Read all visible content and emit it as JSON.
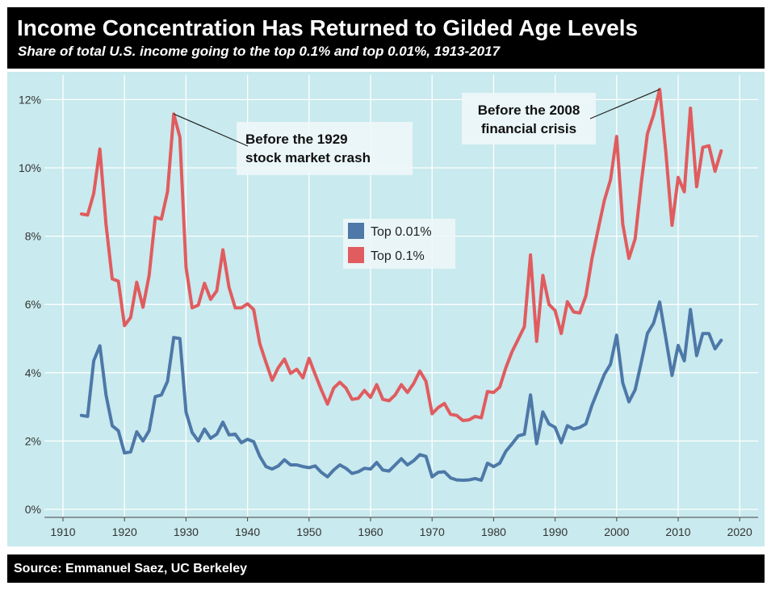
{
  "header": {
    "title": "Income Concentration Has Returned to Gilded Age Levels",
    "subtitle": "Share of total U.S. income going to the top 0.1% and top 0.01%, 1913-2017"
  },
  "footer": {
    "source": "Source: Emmanuel Saez, UC Berkeley"
  },
  "chart_data": {
    "type": "line",
    "title": "Income Concentration Has Returned to Gilded Age Levels",
    "subtitle": "Share of total U.S. income going to the top 0.1% and top 0.01%, 1913-2017",
    "xlabel": "",
    "ylabel": "",
    "xlim": [
      1907,
      2023
    ],
    "ylim": [
      0,
      12.8
    ],
    "x_ticks": [
      1910,
      1920,
      1930,
      1940,
      1950,
      1960,
      1970,
      1980,
      1990,
      2000,
      2010,
      2020
    ],
    "y_ticks": [
      0,
      2,
      4,
      6,
      8,
      10,
      12
    ],
    "y_tick_labels": [
      "0%",
      "2%",
      "4%",
      "6%",
      "8%",
      "10%",
      "12%"
    ],
    "grid": true,
    "legend_position": "center",
    "x": [
      1913,
      1914,
      1915,
      1916,
      1917,
      1918,
      1919,
      1920,
      1921,
      1922,
      1923,
      1924,
      1925,
      1926,
      1927,
      1928,
      1929,
      1930,
      1931,
      1932,
      1933,
      1934,
      1935,
      1936,
      1937,
      1938,
      1939,
      1940,
      1941,
      1942,
      1943,
      1944,
      1945,
      1946,
      1947,
      1948,
      1949,
      1950,
      1951,
      1952,
      1953,
      1954,
      1955,
      1956,
      1957,
      1958,
      1959,
      1960,
      1961,
      1962,
      1963,
      1964,
      1965,
      1966,
      1967,
      1968,
      1969,
      1970,
      1971,
      1972,
      1973,
      1974,
      1975,
      1976,
      1977,
      1978,
      1979,
      1980,
      1981,
      1982,
      1983,
      1984,
      1985,
      1986,
      1987,
      1988,
      1989,
      1990,
      1991,
      1992,
      1993,
      1994,
      1995,
      1996,
      1997,
      1998,
      1999,
      2000,
      2001,
      2002,
      2003,
      2004,
      2005,
      2006,
      2007,
      2008,
      2009,
      2010,
      2011,
      2012,
      2013,
      2014,
      2015,
      2016,
      2017
    ],
    "series": [
      {
        "name": "Top 0.01%",
        "color": "#4d78a8",
        "values": [
          2.75,
          2.72,
          4.35,
          4.79,
          3.35,
          2.45,
          2.3,
          1.65,
          1.68,
          2.27,
          2.0,
          2.3,
          3.3,
          3.35,
          3.75,
          5.03,
          5.0,
          2.85,
          2.25,
          2.0,
          2.35,
          2.08,
          2.2,
          2.55,
          2.18,
          2.2,
          1.95,
          2.05,
          1.98,
          1.55,
          1.25,
          1.18,
          1.27,
          1.45,
          1.3,
          1.3,
          1.25,
          1.22,
          1.27,
          1.08,
          0.95,
          1.15,
          1.3,
          1.2,
          1.05,
          1.1,
          1.2,
          1.18,
          1.37,
          1.15,
          1.12,
          1.3,
          1.48,
          1.3,
          1.42,
          1.6,
          1.55,
          0.95,
          1.08,
          1.1,
          0.92,
          0.86,
          0.85,
          0.86,
          0.9,
          0.85,
          1.35,
          1.25,
          1.35,
          1.7,
          1.92,
          2.15,
          2.2,
          3.35,
          1.92,
          2.85,
          2.5,
          2.4,
          1.95,
          2.45,
          2.35,
          2.4,
          2.5,
          3.05,
          3.5,
          3.95,
          4.25,
          5.1,
          3.7,
          3.15,
          3.5,
          4.3,
          5.15,
          5.45,
          6.07,
          5.0,
          3.92,
          4.8,
          4.35,
          5.85,
          4.5,
          5.15,
          5.15,
          4.7,
          4.95
        ]
      },
      {
        "name": "Top 0.1%",
        "color": "#e05c5f",
        "values": [
          8.65,
          8.62,
          9.25,
          10.55,
          8.35,
          6.75,
          6.68,
          5.38,
          5.62,
          6.65,
          5.92,
          6.85,
          8.55,
          8.5,
          9.3,
          11.58,
          10.9,
          7.1,
          5.9,
          5.98,
          6.62,
          6.15,
          6.4,
          7.6,
          6.5,
          5.9,
          5.9,
          6.02,
          5.85,
          4.85,
          4.3,
          3.78,
          4.15,
          4.4,
          3.98,
          4.1,
          3.85,
          4.42,
          3.95,
          3.5,
          3.08,
          3.55,
          3.72,
          3.55,
          3.22,
          3.25,
          3.48,
          3.28,
          3.65,
          3.22,
          3.18,
          3.35,
          3.65,
          3.42,
          3.68,
          4.05,
          3.75,
          2.8,
          2.98,
          3.1,
          2.78,
          2.75,
          2.6,
          2.62,
          2.72,
          2.68,
          3.45,
          3.42,
          3.58,
          4.15,
          4.62,
          4.98,
          5.35,
          7.45,
          4.92,
          6.85,
          6.0,
          5.82,
          5.15,
          6.08,
          5.78,
          5.75,
          6.25,
          7.35,
          8.2,
          9.05,
          9.65,
          10.92,
          8.35,
          7.35,
          7.92,
          9.55,
          11.0,
          11.55,
          12.3,
          10.45,
          8.32,
          9.72,
          9.3,
          11.75,
          9.45,
          10.6,
          10.65,
          9.9,
          10.5
        ]
      }
    ],
    "annotations": [
      {
        "text_lines": [
          "Before the 1929",
          "stock market crash"
        ],
        "x": 1928,
        "y": 11.58
      },
      {
        "text_lines": [
          "Before the 2008",
          "financial crisis"
        ],
        "x": 2007,
        "y": 12.3
      }
    ]
  }
}
